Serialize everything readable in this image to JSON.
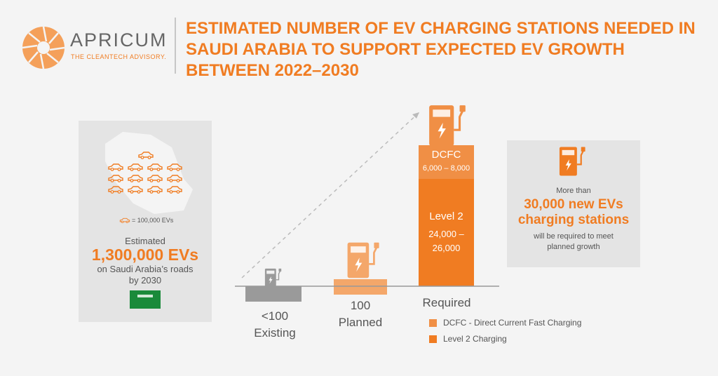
{
  "logo": {
    "name": "APRICUM",
    "tagline": "THE CLEANTECH ADVISORY."
  },
  "title": "ESTIMATED NUMBER OF EV CHARGING STATIONS NEEDED IN SAUDI ARABIA TO SUPPORT EXPECTED EV GROWTH BETWEEN 2022–2030",
  "ev_panel": {
    "legend": "= 100,000 EVs",
    "lines": [
      "Estimated",
      "1,300,000 EVs",
      "on Saudi Arabia’s roads",
      "by 2030"
    ]
  },
  "stages": [
    {
      "value": "<100",
      "label": "Existing"
    },
    {
      "value": "100",
      "label": "Planned"
    },
    {
      "label": "Required",
      "segments": [
        {
          "name": "DCFC",
          "value": "6,000 – 8,000"
        },
        {
          "name": "Level 2",
          "value": "24,000 – 26,000"
        }
      ]
    }
  ],
  "legend": [
    "DCFC - Direct Current Fast Charging",
    "Level 2 Charging"
  ],
  "callout": {
    "lead": "More than",
    "highlight": "30,000 new EVs charging stations",
    "note": "will be required to meet planned growth"
  }
}
